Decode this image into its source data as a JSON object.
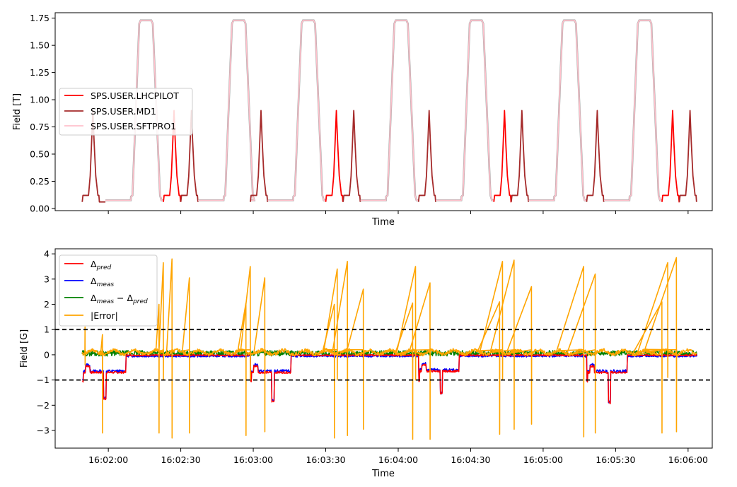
{
  "chart_data": [
    {
      "type": "line",
      "xlabel": "Time",
      "ylabel": "Field [T]",
      "ylim": [
        -0.02,
        1.8
      ],
      "yticks": [
        0.0,
        0.25,
        0.5,
        0.75,
        1.0,
        1.25,
        1.5,
        1.75
      ],
      "ytick_labels": [
        "0.00",
        "0.25",
        "0.50",
        "0.75",
        "1.00",
        "1.25",
        "1.50",
        "1.75"
      ],
      "xticks_seconds": [
        0,
        30,
        60,
        90,
        120,
        150,
        180,
        210,
        240
      ],
      "x_range_seconds": [
        -22,
        250
      ],
      "grid": false,
      "legend_position": "center-left",
      "legend": [
        "SPS.USER.LHCPILOT",
        "SPS.USER.MD1",
        "SPS.USER.SFTPRO1"
      ],
      "colors": {
        "SPS.USER.LHCPILOT": "#ff0000",
        "SPS.USER.MD1": "#a52a2a",
        "SPS.USER.SFTPRO1": "#ffc0cb"
      },
      "cycle_sequence": [
        {
          "start_s": -10.8,
          "user": "SPS.USER.MD1",
          "peak_T": 0.9
        },
        {
          "start_s": -1.2,
          "user": "SPS.USER.SFTPRO1",
          "peak_T": 1.73
        },
        {
          "start_s": 22.8,
          "user": "SPS.USER.LHCPILOT",
          "peak_T": 0.9
        },
        {
          "start_s": 30.0,
          "user": "SPS.USER.MD1",
          "peak_T": 0.9
        },
        {
          "start_s": 37.2,
          "user": "SPS.USER.SFTPRO1",
          "peak_T": 1.73
        },
        {
          "start_s": 58.8,
          "user": "SPS.USER.MD1",
          "peak_T": 0.9
        },
        {
          "start_s": 66.0,
          "user": "SPS.USER.SFTPRO1",
          "peak_T": 1.73
        },
        {
          "start_s": 90.0,
          "user": "SPS.USER.LHCPILOT",
          "peak_T": 0.9
        },
        {
          "start_s": 97.2,
          "user": "SPS.USER.MD1",
          "peak_T": 0.9
        },
        {
          "start_s": 104.4,
          "user": "SPS.USER.SFTPRO1",
          "peak_T": 1.73
        },
        {
          "start_s": 128.4,
          "user": "SPS.USER.MD1",
          "peak_T": 0.9
        },
        {
          "start_s": 135.6,
          "user": "SPS.USER.SFTPRO1",
          "peak_T": 1.73
        },
        {
          "start_s": 159.6,
          "user": "SPS.USER.LHCPILOT",
          "peak_T": 0.9
        },
        {
          "start_s": 166.8,
          "user": "SPS.USER.MD1",
          "peak_T": 0.9
        },
        {
          "start_s": 174.0,
          "user": "SPS.USER.SFTPRO1",
          "peak_T": 1.73
        },
        {
          "start_s": 198.0,
          "user": "SPS.USER.MD1",
          "peak_T": 0.9
        },
        {
          "start_s": 205.2,
          "user": "SPS.USER.SFTPRO1",
          "peak_T": 1.73
        },
        {
          "start_s": 229.2,
          "user": "SPS.USER.LHCPILOT",
          "peak_T": 0.9
        },
        {
          "start_s": 236.4,
          "user": "SPS.USER.MD1",
          "peak_T": 0.9
        }
      ],
      "baseline_T": {
        "MD1_LHCPILOT_flat": 0.12,
        "SFTPRO1_flat": 0.075,
        "injection_min": 0.06
      }
    },
    {
      "type": "line",
      "xlabel": "Time",
      "ylabel": "Field [G]",
      "ylim": [
        -3.7,
        4.2
      ],
      "yticks": [
        -3,
        -2,
        -1,
        0,
        1,
        2,
        3,
        4
      ],
      "ytick_labels": [
        "−3",
        "−2",
        "−1",
        "0",
        "1",
        "2",
        "3",
        "4"
      ],
      "xticks_seconds": [
        0,
        30,
        60,
        90,
        120,
        150,
        180,
        210,
        240
      ],
      "xtick_labels": [
        "16:02:00",
        "16:02:30",
        "16:03:00",
        "16:03:30",
        "16:04:00",
        "16:04:30",
        "16:05:00",
        "16:05:30",
        "16:06:00"
      ],
      "x_range_seconds": [
        -22,
        250
      ],
      "grid": false,
      "legend_position": "top-left",
      "threshold_lines": [
        1,
        -1
      ],
      "threshold_style": "dashed black",
      "series": [
        {
          "name": "Δpred",
          "color": "#ff0000"
        },
        {
          "name": "Δmeas",
          "color": "#0000ff"
        },
        {
          "name": "Δmeas − Δpred",
          "color": "#008000"
        },
        {
          "name": "|Error|",
          "color": "#ffa500"
        }
      ],
      "legend_labels": [
        {
          "base": "Δ",
          "sub": "pred"
        },
        {
          "base": "Δ",
          "sub": "meas"
        },
        {
          "base": "Δ",
          "sub": "meas",
          "mid": " − Δ",
          "sub2": "pred"
        },
        {
          "base": "|Error|"
        }
      ],
      "error_spikes": [
        {
          "t": -9.6,
          "max": 1.1,
          "min": -0.4
        },
        {
          "t": -2.4,
          "max": 0.8,
          "min": -3.1
        },
        {
          "t": 21.0,
          "max": 2.0,
          "min": -3.1
        },
        {
          "t": 22.8,
          "max": 3.65,
          "min": -1.0
        },
        {
          "t": 26.4,
          "max": 3.8,
          "min": -3.3
        },
        {
          "t": 33.6,
          "max": 3.05,
          "min": -3.1
        },
        {
          "t": 57.0,
          "max": 2.05,
          "min": -3.2
        },
        {
          "t": 58.8,
          "max": 3.5,
          "min": -1.0
        },
        {
          "t": 64.8,
          "max": 3.05,
          "min": -3.05
        },
        {
          "t": 93.6,
          "max": 2.0,
          "min": -3.3
        },
        {
          "t": 94.8,
          "max": 3.4,
          "min": -1.0
        },
        {
          "t": 99.0,
          "max": 3.7,
          "min": -3.2
        },
        {
          "t": 105.6,
          "max": 2.6,
          "min": -2.95
        },
        {
          "t": 126.0,
          "max": 2.05,
          "min": -3.35
        },
        {
          "t": 127.2,
          "max": 3.5,
          "min": -1.0
        },
        {
          "t": 133.2,
          "max": 2.85,
          "min": -3.35
        },
        {
          "t": 162.0,
          "max": 2.1,
          "min": -3.15
        },
        {
          "t": 163.2,
          "max": 3.7,
          "min": -1.0
        },
        {
          "t": 168.0,
          "max": 3.75,
          "min": -2.95
        },
        {
          "t": 175.2,
          "max": 2.7,
          "min": -2.75
        },
        {
          "t": 196.8,
          "max": 3.5,
          "min": -3.25
        },
        {
          "t": 201.6,
          "max": 3.2,
          "min": -3.1
        },
        {
          "t": 229.2,
          "max": 2.1,
          "min": -3.1
        },
        {
          "t": 231.6,
          "max": 3.65,
          "min": -0.9
        },
        {
          "t": 235.2,
          "max": 3.85,
          "min": -3.05
        },
        {
          "t": 243.6,
          "max": 2.95,
          "min": -3.1
        }
      ],
      "meas_dips": [
        {
          "t_start": -10.8,
          "t_end": 7.2,
          "level": -0.65,
          "min": -1.7
        },
        {
          "t_start": 58.8,
          "t_end": 75.6,
          "level": -0.65,
          "min": -1.8
        },
        {
          "t_start": 128.4,
          "t_end": 145.2,
          "level": -0.6,
          "min": -1.5
        },
        {
          "t_start": 198.0,
          "t_end": 214.8,
          "level": -0.65,
          "min": -1.85
        }
      ]
    }
  ]
}
